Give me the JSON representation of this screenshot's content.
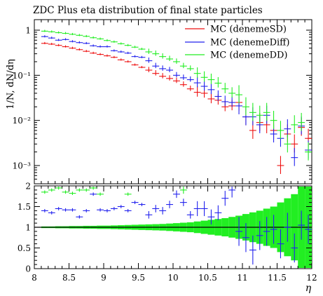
{
  "chart_data": [
    {
      "type": "scatter",
      "panel": "main",
      "title": "ZDC Plus eta distribution of final state particles",
      "ylabel": "1/N, dN/dη",
      "yscale": "log",
      "ylim": [
        0.0005,
        2
      ],
      "xlim": [
        8,
        12
      ],
      "yticks": [
        {
          "value": 1,
          "label": "1"
        },
        {
          "value": 0.1,
          "label": "10⁻¹"
        },
        {
          "value": 0.01,
          "label": "10⁻²"
        },
        {
          "value": 0.001,
          "label": "10⁻³"
        }
      ],
      "legend_position": "top-right",
      "series": [
        {
          "name": "MC (denemeSD)",
          "color": "#ee1111",
          "x": [
            8.15,
            8.25,
            8.35,
            8.45,
            8.55,
            8.65,
            8.75,
            8.85,
            8.95,
            9.05,
            9.15,
            9.25,
            9.35,
            9.45,
            9.55,
            9.65,
            9.75,
            9.85,
            9.95,
            10.05,
            10.15,
            10.25,
            10.35,
            10.45,
            10.55,
            10.65,
            10.75,
            10.85,
            10.95,
            11.05,
            11.15,
            11.25,
            11.35,
            11.45,
            11.55,
            11.65,
            11.75,
            11.85,
            11.95
          ],
          "y": [
            0.51,
            0.49,
            0.46,
            0.43,
            0.4,
            0.37,
            0.34,
            0.31,
            0.29,
            0.27,
            0.25,
            0.22,
            0.2,
            0.17,
            0.15,
            0.13,
            0.11,
            0.095,
            0.085,
            0.075,
            0.062,
            0.05,
            0.042,
            0.04,
            0.03,
            0.028,
            0.02,
            0.021,
            0.025,
            0.012,
            0.006,
            0.009,
            0.008,
            0.006,
            0.001,
            0.005,
            0.003,
            0.007,
            0.004
          ]
        },
        {
          "name": "MC (denemeDiff)",
          "color": "#2222ee",
          "x": [
            8.15,
            8.25,
            8.35,
            8.45,
            8.55,
            8.65,
            8.75,
            8.85,
            8.95,
            9.05,
            9.15,
            9.25,
            9.35,
            9.45,
            9.55,
            9.65,
            9.75,
            9.85,
            9.95,
            10.05,
            10.15,
            10.25,
            10.35,
            10.45,
            10.55,
            10.65,
            10.75,
            10.85,
            10.95,
            11.05,
            11.15,
            11.25,
            11.35,
            11.45,
            11.55,
            11.65,
            11.75,
            11.85,
            11.95
          ],
          "y": [
            0.72,
            0.67,
            0.6,
            0.62,
            0.56,
            0.53,
            0.51,
            0.45,
            0.43,
            0.43,
            0.35,
            0.33,
            0.31,
            0.26,
            0.25,
            0.21,
            0.16,
            0.14,
            0.13,
            0.1,
            0.088,
            0.08,
            0.068,
            0.057,
            0.048,
            0.034,
            0.026,
            0.025,
            0.021,
            0.012,
            0.012,
            0.008,
            0.013,
            0.005,
            0.004,
            0.0065,
            0.0015,
            0.0075,
            0.0022
          ]
        },
        {
          "name": "MC (denemeDD)",
          "color": "#22ee22",
          "x": [
            8.15,
            8.25,
            8.35,
            8.45,
            8.55,
            8.65,
            8.75,
            8.85,
            8.95,
            9.05,
            9.15,
            9.25,
            9.35,
            9.45,
            9.55,
            9.65,
            9.75,
            9.85,
            9.95,
            10.05,
            10.15,
            10.25,
            10.35,
            10.45,
            10.55,
            10.65,
            10.75,
            10.85,
            10.95,
            11.05,
            11.15,
            11.25,
            11.35,
            11.45,
            11.55,
            11.65,
            11.75,
            11.85,
            11.95
          ],
          "y": [
            0.95,
            0.92,
            0.88,
            0.85,
            0.81,
            0.77,
            0.73,
            0.68,
            0.64,
            0.59,
            0.55,
            0.5,
            0.46,
            0.42,
            0.38,
            0.33,
            0.3,
            0.26,
            0.23,
            0.2,
            0.16,
            0.14,
            0.11,
            0.09,
            0.08,
            0.067,
            0.05,
            0.04,
            0.037,
            0.02,
            0.015,
            0.013,
            0.015,
            0.01,
            0.006,
            0.003,
            0.008,
            0.009,
            0.002
          ]
        }
      ]
    },
    {
      "type": "scatter",
      "panel": "ratio",
      "xlabel": "η",
      "xlim": [
        8,
        12
      ],
      "ylim": [
        0,
        2
      ],
      "xticks": [
        {
          "value": 8,
          "label": "8"
        },
        {
          "value": 8.5,
          "label": "8.5"
        },
        {
          "value": 9,
          "label": "9"
        },
        {
          "value": 9.5,
          "label": "9.5"
        },
        {
          "value": 10,
          "label": "10"
        },
        {
          "value": 10.5,
          "label": "10.5"
        },
        {
          "value": 11,
          "label": "11"
        },
        {
          "value": 11.5,
          "label": "11.5"
        },
        {
          "value": 12,
          "label": "12"
        }
      ],
      "yticks": [
        {
          "value": 0,
          "label": "0"
        },
        {
          "value": 0.5,
          "label": "0.5"
        },
        {
          "value": 1,
          "label": "1"
        },
        {
          "value": 1.5,
          "label": "1.5"
        },
        {
          "value": 2,
          "label": "2"
        }
      ],
      "band": {
        "color": "#22ee22",
        "x": [
          8.15,
          8.25,
          8.35,
          8.45,
          8.55,
          8.65,
          8.75,
          8.85,
          8.95,
          9.05,
          9.15,
          9.25,
          9.35,
          9.45,
          9.55,
          9.65,
          9.75,
          9.85,
          9.95,
          10.05,
          10.15,
          10.25,
          10.35,
          10.45,
          10.55,
          10.65,
          10.75,
          10.85,
          10.95,
          11.05,
          11.15,
          11.25,
          11.35,
          11.45,
          11.55,
          11.65,
          11.75,
          11.85,
          11.95
        ],
        "halfwidth": [
          0.02,
          0.02,
          0.025,
          0.025,
          0.03,
          0.03,
          0.035,
          0.035,
          0.04,
          0.04,
          0.045,
          0.05,
          0.055,
          0.06,
          0.065,
          0.07,
          0.075,
          0.08,
          0.09,
          0.1,
          0.11,
          0.12,
          0.14,
          0.16,
          0.18,
          0.2,
          0.22,
          0.25,
          0.28,
          0.32,
          0.36,
          0.4,
          0.45,
          0.5,
          0.6,
          0.7,
          0.8,
          1.0,
          1.2
        ]
      },
      "series": [
        {
          "name": "MC (denemeDiff)",
          "color": "#2222ee",
          "x": [
            8.15,
            8.25,
            8.35,
            8.45,
            8.55,
            8.65,
            8.75,
            8.85,
            8.95,
            9.05,
            9.15,
            9.25,
            9.35,
            9.45,
            9.55,
            9.65,
            9.75,
            9.85,
            9.95,
            10.05,
            10.15,
            10.25,
            10.35,
            10.45,
            10.55,
            10.65,
            10.75,
            10.85,
            10.95,
            11.05,
            11.15,
            11.25,
            11.35,
            11.45,
            11.55,
            11.65,
            11.75,
            11.85,
            11.95
          ],
          "y": [
            1.4,
            1.35,
            1.45,
            1.42,
            1.42,
            1.25,
            1.4,
            1.8,
            1.42,
            1.4,
            1.45,
            1.5,
            1.4,
            1.6,
            1.55,
            1.3,
            1.45,
            1.4,
            1.55,
            1.8,
            1.6,
            1.3,
            1.45,
            1.45,
            1.25,
            1.35,
            1.7,
            1.9,
            0.9,
            0.75,
            0.45,
            0.8,
            0.9,
            0.95,
            0.6,
            1.0,
            0.5,
            1.05,
            0.95
          ]
        },
        {
          "name": "MC (denemeDD)",
          "color": "#22ee22",
          "x": [
            8.15,
            8.25,
            8.35,
            8.45,
            8.55,
            8.65,
            8.75,
            8.85,
            8.95,
            9.05,
            9.15,
            9.25,
            9.35,
            9.45,
            9.55,
            9.65,
            9.75,
            9.85,
            9.95,
            10.05,
            10.15,
            10.25,
            10.35,
            10.45,
            10.55,
            10.65,
            10.75,
            10.85,
            10.95,
            11.05,
            11.15,
            11.25,
            11.35,
            11.45,
            11.55,
            11.65,
            11.75,
            11.85,
            11.95
          ],
          "y": [
            1.85,
            1.9,
            1.95,
            1.85,
            1.82,
            1.9,
            1.9,
            1.95,
            1.8,
            2.0,
            2.0,
            2.0,
            1.8,
            2.0,
            2.0,
            2.0,
            2.0,
            2.0,
            2.0,
            2.0,
            1.9,
            2.0,
            2.0,
            2.0,
            2.0,
            2.0,
            2.0,
            2.0,
            2.0,
            2.0,
            2.0,
            2.0,
            2.0,
            2.0,
            2.0,
            2.0,
            2.0,
            2.0,
            2.0
          ]
        }
      ]
    }
  ]
}
